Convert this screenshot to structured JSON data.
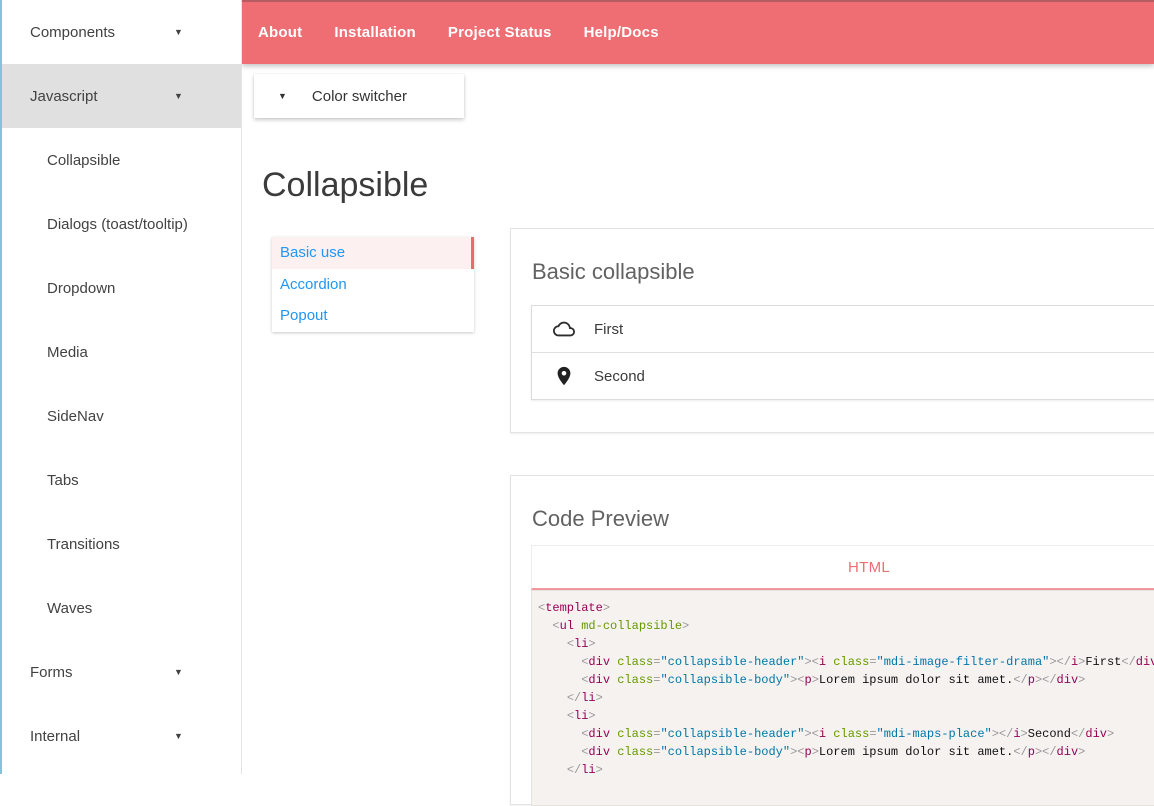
{
  "colors": {
    "navbar_bg": "#ee6e73",
    "accent_red": "#e96a70",
    "selected_tab_bg": "#fdf0f0",
    "tab_underline": "#f0989c",
    "link_blue": "#2196f3",
    "sidebar_active_bg": "#e0e0e0",
    "edge_strip": "#82c5da",
    "code_bg": "#f5f2f0",
    "code_tag": "#990055",
    "code_attr": "#669900",
    "code_string": "#0077aa",
    "code_punct": "#999999"
  },
  "navbar": {
    "items": [
      "About",
      "Installation",
      "Project Status",
      "Help/Docs"
    ]
  },
  "color_switcher": {
    "label": "Color switcher",
    "icon": "chevron-down-icon"
  },
  "sidebar": {
    "items": [
      {
        "label": "Components",
        "level": 0,
        "caret": true,
        "active": false
      },
      {
        "label": "Javascript",
        "level": 0,
        "caret": true,
        "active": true
      },
      {
        "label": "Collapsible",
        "level": 1,
        "caret": false,
        "active": false
      },
      {
        "label": "Dialogs (toast/tooltip)",
        "level": 1,
        "caret": false,
        "active": false
      },
      {
        "label": "Dropdown",
        "level": 1,
        "caret": false,
        "active": false
      },
      {
        "label": "Media",
        "level": 1,
        "caret": false,
        "active": false
      },
      {
        "label": "SideNav",
        "level": 1,
        "caret": false,
        "active": false
      },
      {
        "label": "Tabs",
        "level": 1,
        "caret": false,
        "active": false
      },
      {
        "label": "Transitions",
        "level": 1,
        "caret": false,
        "active": false
      },
      {
        "label": "Waves",
        "level": 1,
        "caret": false,
        "active": false
      },
      {
        "label": "Forms",
        "level": 0,
        "caret": true,
        "active": false
      },
      {
        "label": "Internal",
        "level": 0,
        "caret": true,
        "active": false
      }
    ]
  },
  "page": {
    "title": "Collapsible"
  },
  "demo_nav": {
    "items": [
      {
        "label": "Basic use",
        "selected": true
      },
      {
        "label": "Accordion",
        "selected": false
      },
      {
        "label": "Popout",
        "selected": false
      }
    ]
  },
  "basic_collapsible": {
    "title": "Basic collapsible",
    "items": [
      {
        "icon": "cloud-icon",
        "label": "First"
      },
      {
        "icon": "place-icon",
        "label": "Second"
      }
    ]
  },
  "code_preview": {
    "title": "Code Preview",
    "tab_label": "HTML",
    "code_lines": [
      [
        [
          "p",
          "<"
        ],
        [
          "g",
          "template"
        ],
        [
          "p",
          ">"
        ]
      ],
      [
        [
          "t",
          "  "
        ],
        [
          "p",
          "<"
        ],
        [
          "g",
          "ul"
        ],
        [
          "t",
          " "
        ],
        [
          "a",
          "md-collapsible"
        ],
        [
          "p",
          ">"
        ]
      ],
      [
        [
          "t",
          "    "
        ],
        [
          "p",
          "<"
        ],
        [
          "g",
          "li"
        ],
        [
          "p",
          ">"
        ]
      ],
      [
        [
          "t",
          "      "
        ],
        [
          "p",
          "<"
        ],
        [
          "g",
          "div"
        ],
        [
          "t",
          " "
        ],
        [
          "a",
          "class"
        ],
        [
          "p",
          "="
        ],
        [
          "s",
          "\"collapsible-header\""
        ],
        [
          "p",
          "><"
        ],
        [
          "g",
          "i"
        ],
        [
          "t",
          " "
        ],
        [
          "a",
          "class"
        ],
        [
          "p",
          "="
        ],
        [
          "s",
          "\"mdi-image-filter-drama\""
        ],
        [
          "p",
          "></"
        ],
        [
          "g",
          "i"
        ],
        [
          "p",
          ">"
        ],
        [
          "t",
          "First"
        ],
        [
          "p",
          "</"
        ],
        [
          "g",
          "div"
        ],
        [
          "p",
          ">"
        ]
      ],
      [
        [
          "t",
          "      "
        ],
        [
          "p",
          "<"
        ],
        [
          "g",
          "div"
        ],
        [
          "t",
          " "
        ],
        [
          "a",
          "class"
        ],
        [
          "p",
          "="
        ],
        [
          "s",
          "\"collapsible-body\""
        ],
        [
          "p",
          "><"
        ],
        [
          "g",
          "p"
        ],
        [
          "p",
          ">"
        ],
        [
          "t",
          "Lorem ipsum dolor sit amet."
        ],
        [
          "p",
          "</"
        ],
        [
          "g",
          "p"
        ],
        [
          "p",
          "></"
        ],
        [
          "g",
          "div"
        ],
        [
          "p",
          ">"
        ]
      ],
      [
        [
          "t",
          "    "
        ],
        [
          "p",
          "</"
        ],
        [
          "g",
          "li"
        ],
        [
          "p",
          ">"
        ]
      ],
      [
        [
          "t",
          "    "
        ],
        [
          "p",
          "<"
        ],
        [
          "g",
          "li"
        ],
        [
          "p",
          ">"
        ]
      ],
      [
        [
          "t",
          "      "
        ],
        [
          "p",
          "<"
        ],
        [
          "g",
          "div"
        ],
        [
          "t",
          " "
        ],
        [
          "a",
          "class"
        ],
        [
          "p",
          "="
        ],
        [
          "s",
          "\"collapsible-header\""
        ],
        [
          "p",
          "><"
        ],
        [
          "g",
          "i"
        ],
        [
          "t",
          " "
        ],
        [
          "a",
          "class"
        ],
        [
          "p",
          "="
        ],
        [
          "s",
          "\"mdi-maps-place\""
        ],
        [
          "p",
          "></"
        ],
        [
          "g",
          "i"
        ],
        [
          "p",
          ">"
        ],
        [
          "t",
          "Second"
        ],
        [
          "p",
          "</"
        ],
        [
          "g",
          "div"
        ],
        [
          "p",
          ">"
        ]
      ],
      [
        [
          "t",
          "      "
        ],
        [
          "p",
          "<"
        ],
        [
          "g",
          "div"
        ],
        [
          "t",
          " "
        ],
        [
          "a",
          "class"
        ],
        [
          "p",
          "="
        ],
        [
          "s",
          "\"collapsible-body\""
        ],
        [
          "p",
          "><"
        ],
        [
          "g",
          "p"
        ],
        [
          "p",
          ">"
        ],
        [
          "t",
          "Lorem ipsum dolor sit amet."
        ],
        [
          "p",
          "</"
        ],
        [
          "g",
          "p"
        ],
        [
          "p",
          "></"
        ],
        [
          "g",
          "div"
        ],
        [
          "p",
          ">"
        ]
      ],
      [
        [
          "t",
          "    "
        ],
        [
          "p",
          "</"
        ],
        [
          "g",
          "li"
        ],
        [
          "p",
          ">"
        ]
      ]
    ]
  }
}
